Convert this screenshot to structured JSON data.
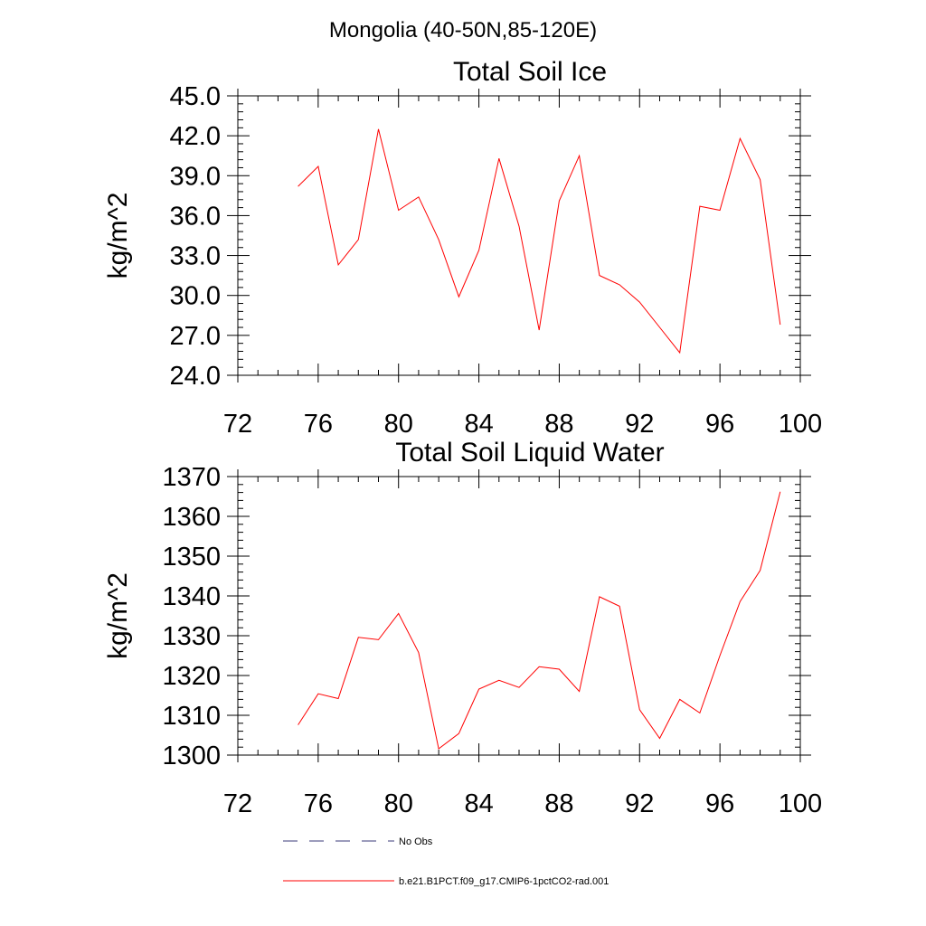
{
  "page_title": "Mongolia (40-50N,85-120E)",
  "colors": {
    "model_line": "#ff0000",
    "obs_line": "#3a3a7a",
    "axis": "#000000"
  },
  "legend": {
    "obs_label": "No Obs",
    "model_label": "b.e21.B1PCT.f09_g17.CMIP6-1pctCO2-rad.001"
  },
  "chart_data": [
    {
      "type": "line",
      "title": "Total Soil Ice",
      "xlabel": "",
      "ylabel": "kg/m^2",
      "xlim": [
        72,
        100
      ],
      "ylim": [
        24,
        45
      ],
      "xticks": [
        72,
        76,
        80,
        84,
        88,
        92,
        96,
        100
      ],
      "xtick_labels": [
        "72",
        "76",
        "80",
        "84",
        "88",
        "92",
        "96",
        "100"
      ],
      "yticks": [
        24,
        27,
        30,
        33,
        36,
        39,
        42,
        45
      ],
      "ytick_labels": [
        "24.0",
        "27.0",
        "30.0",
        "33.0",
        "36.0",
        "39.0",
        "42.0",
        "45.0"
      ],
      "grid": false,
      "series": [
        {
          "name": "b.e21.B1PCT.f09_g17.CMIP6-1pctCO2-rad.001",
          "x": [
            75,
            76,
            77,
            78,
            79,
            80,
            81,
            82,
            83,
            84,
            85,
            86,
            87,
            88,
            89,
            90,
            91,
            92,
            93,
            94,
            95,
            96,
            97,
            98,
            99
          ],
          "y": [
            38.2,
            39.7,
            32.3,
            34.2,
            42.5,
            36.4,
            37.4,
            34.2,
            29.9,
            33.4,
            40.3,
            35.2,
            27.4,
            37.1,
            40.5,
            31.5,
            30.8,
            29.5,
            27.6,
            25.7,
            36.7,
            36.4,
            41.8,
            38.7,
            27.8
          ]
        }
      ]
    },
    {
      "type": "line",
      "title": "Total Soil Liquid Water",
      "xlabel": "",
      "ylabel": "kg/m^2",
      "xlim": [
        72,
        100
      ],
      "ylim": [
        1300,
        1370
      ],
      "xticks": [
        72,
        76,
        80,
        84,
        88,
        92,
        96,
        100
      ],
      "xtick_labels": [
        "72",
        "76",
        "80",
        "84",
        "88",
        "92",
        "96",
        "100"
      ],
      "yticks": [
        1300,
        1310,
        1320,
        1330,
        1340,
        1350,
        1360,
        1370
      ],
      "ytick_labels": [
        "1300",
        "1310",
        "1320",
        "1330",
        "1340",
        "1350",
        "1360",
        "1370"
      ],
      "grid": false,
      "series": [
        {
          "name": "b.e21.B1PCT.f09_g17.CMIP6-1pctCO2-rad.001",
          "x": [
            75,
            76,
            77,
            78,
            79,
            80,
            81,
            82,
            83,
            84,
            85,
            86,
            87,
            88,
            89,
            90,
            91,
            92,
            93,
            94,
            95,
            96,
            97,
            98,
            99
          ],
          "y": [
            1307.6,
            1315.4,
            1314.2,
            1329.6,
            1329.0,
            1335.6,
            1325.8,
            1301.6,
            1305.4,
            1316.6,
            1318.8,
            1317.0,
            1322.2,
            1321.6,
            1316.0,
            1339.8,
            1337.4,
            1311.4,
            1304.2,
            1314.0,
            1310.6,
            1325.0,
            1338.6,
            1346.4,
            1366.2
          ]
        }
      ]
    }
  ]
}
